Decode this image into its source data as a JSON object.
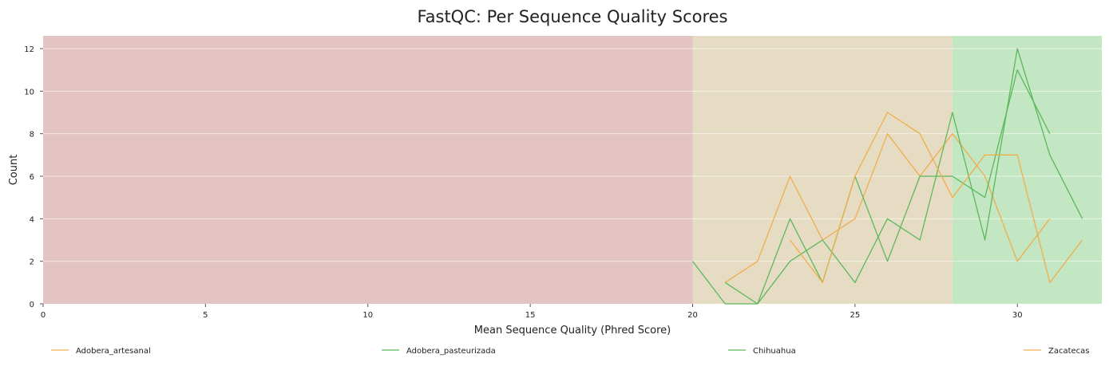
{
  "chart_data": {
    "type": "line",
    "title": "FastQC: Per Sequence Quality Scores",
    "xlabel": "Mean Sequence Quality (Phred Score)",
    "ylabel": "Count",
    "xlim": [
      0,
      32.6
    ],
    "ylim": [
      0,
      12.6
    ],
    "xticks": [
      0,
      5,
      10,
      15,
      20,
      25,
      30
    ],
    "yticks": [
      0,
      2,
      4,
      6,
      8,
      10,
      12
    ],
    "grid": true,
    "legend_position": "bottom",
    "bands": [
      {
        "from": 0,
        "to": 20,
        "color": "#e3c3c3"
      },
      {
        "from": 20,
        "to": 28,
        "color": "#e6dcc3"
      },
      {
        "from": 28,
        "to": 32.6,
        "color": "#c3e6c3"
      }
    ],
    "series": [
      {
        "name": "Adobera_artesanal",
        "color": "#f0ad4e",
        "x": [
          21,
          22,
          23,
          24,
          25,
          26,
          27,
          28,
          29,
          30,
          31
        ],
        "y": [
          1,
          2,
          6,
          3,
          4,
          8,
          6,
          8,
          6,
          2,
          4
        ]
      },
      {
        "name": "Adobera_pasteurizada",
        "color": "#5cb85c",
        "x": [
          20,
          21,
          22,
          23,
          24,
          25,
          26,
          27,
          28,
          29,
          30,
          31,
          32
        ],
        "y": [
          2,
          0,
          0,
          2,
          3,
          1,
          4,
          3,
          9,
          3,
          12,
          7,
          4
        ]
      },
      {
        "name": "Chihuahua",
        "color": "#5cb85c",
        "x": [
          21,
          22,
          23,
          24,
          25,
          26,
          27,
          28,
          29,
          30,
          31
        ],
        "y": [
          1,
          0,
          4,
          1,
          6,
          2,
          6,
          6,
          5,
          11,
          8
        ]
      },
      {
        "name": "Zacatecas",
        "color": "#f0ad4e",
        "x": [
          23,
          24,
          25,
          26,
          27,
          28,
          29,
          30,
          31,
          32
        ],
        "y": [
          3,
          1,
          6,
          9,
          8,
          5,
          7,
          7,
          1,
          3
        ]
      }
    ]
  }
}
